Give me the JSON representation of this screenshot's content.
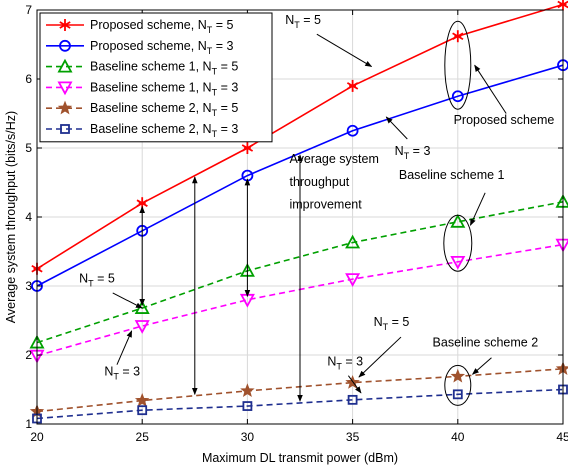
{
  "chart_data": {
    "type": "line",
    "xlabel": "Maximum DL transmit power (dBm)",
    "ylabel": "Average system throughput (bits/s/Hz)",
    "xlim": [
      20,
      45
    ],
    "ylim": [
      1,
      7
    ],
    "xticks": [
      "20",
      "25",
      "30",
      "35",
      "40",
      "45"
    ],
    "yticks": [
      "1",
      "2",
      "3",
      "4",
      "5",
      "6",
      "7"
    ],
    "grid": true,
    "legend_position": "top-left",
    "x": [
      20,
      25,
      30,
      35,
      40,
      45
    ],
    "series": [
      {
        "name": "Proposed scheme, N",
        "sub": "T",
        "suffix": " = 5",
        "values": [
          3.25,
          4.2,
          5.0,
          5.9,
          6.62,
          7.08
        ],
        "color": "#ff0000",
        "marker": "star6",
        "dash": "solid"
      },
      {
        "name": "Proposed scheme, N",
        "sub": "T",
        "suffix": " = 3",
        "values": [
          3.0,
          3.8,
          4.6,
          5.25,
          5.75,
          6.2
        ],
        "color": "#0000ff",
        "marker": "circle",
        "dash": "solid"
      },
      {
        "name": "Baseline scheme 1, N",
        "sub": "T",
        "suffix": " = 5",
        "values": [
          2.18,
          2.68,
          3.22,
          3.63,
          3.93,
          4.22
        ],
        "color": "#00a000",
        "marker": "triangle-up",
        "dash": "dashed"
      },
      {
        "name": "Baseline scheme 1, N",
        "sub": "T",
        "suffix": " = 3",
        "values": [
          1.99,
          2.42,
          2.8,
          3.1,
          3.35,
          3.6
        ],
        "color": "#ff00ff",
        "marker": "triangle-down",
        "dash": "dashed"
      },
      {
        "name": "Baseline scheme 2, N",
        "sub": "T",
        "suffix": " = 5",
        "values": [
          1.18,
          1.34,
          1.48,
          1.6,
          1.69,
          1.8
        ],
        "color": "#a0522d",
        "marker": "star5",
        "dash": "dashed"
      },
      {
        "name": "Baseline scheme 2, N",
        "sub": "T",
        "suffix": " = 3",
        "values": [
          1.08,
          1.2,
          1.26,
          1.35,
          1.43,
          1.5
        ],
        "color": "#1f2f8f",
        "marker": "square",
        "dash": "dashed"
      }
    ],
    "annotations": [
      {
        "id": "nt5-proposed",
        "text": "N",
        "sub": "T",
        "suffix": " = 5",
        "x": 31.8,
        "y": 6.8
      },
      {
        "id": "proposed-scheme",
        "text": "Proposed scheme",
        "x": 39.8,
        "y": 5.35
      },
      {
        "id": "nt3-proposed",
        "text": "N",
        "sub": "T",
        "suffix": " = 3",
        "x": 37.0,
        "y": 4.9
      },
      {
        "id": "baseline1",
        "text": "Baseline scheme 1",
        "x": 37.2,
        "y": 4.55
      },
      {
        "id": "improvement-1",
        "text": "Average system",
        "x": 32.0,
        "y": 4.78
      },
      {
        "id": "improvement-2",
        "text": "throughput",
        "x": 32.0,
        "y": 4.45
      },
      {
        "id": "improvement-3",
        "text": "improvement",
        "x": 32.0,
        "y": 4.12
      },
      {
        "id": "nt5-b1",
        "text": "N",
        "sub": "T",
        "suffix": " = 5",
        "x": 22.0,
        "y": 3.05
      },
      {
        "id": "nt3-b1",
        "text": "N",
        "sub": "T",
        "suffix": " = 3",
        "x": 23.2,
        "y": 1.7
      },
      {
        "id": "nt5-b2",
        "text": "N",
        "sub": "T",
        "suffix": " = 5",
        "x": 36.0,
        "y": 2.42
      },
      {
        "id": "nt3-b2",
        "text": "N",
        "sub": "T",
        "suffix": " = 3",
        "x": 33.8,
        "y": 1.85
      },
      {
        "id": "baseline2",
        "text": "Baseline scheme 2",
        "x": 38.8,
        "y": 2.12
      }
    ]
  }
}
